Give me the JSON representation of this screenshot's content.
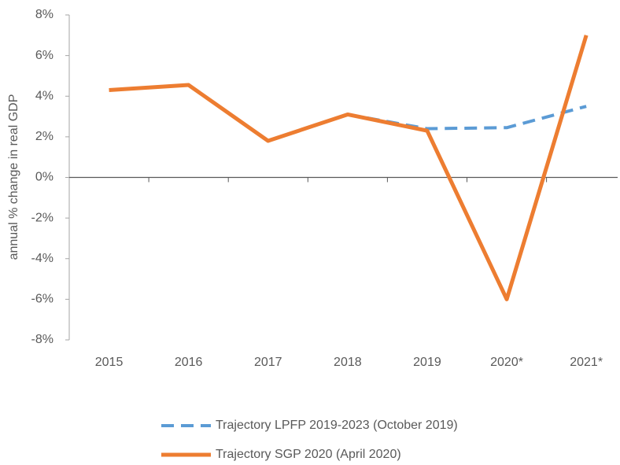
{
  "chart_data": {
    "type": "line",
    "y_axis_label": "annual % change in real GDP",
    "categories": [
      "2015",
      "2016",
      "2017",
      "2018",
      "2019",
      "2020*",
      "2021*"
    ],
    "series": [
      {
        "name": "Trajectory LPFP 2019-2023 (October 2019)",
        "color": "#5b9bd5",
        "dashed": true,
        "values": [
          null,
          null,
          null,
          3.1,
          2.4,
          2.45,
          3.5
        ]
      },
      {
        "name": "Trajectory SGP 2020 (April 2020)",
        "color": "#ed7d31",
        "dashed": false,
        "values": [
          4.3,
          4.55,
          1.8,
          3.1,
          2.3,
          -6.0,
          7.0
        ]
      }
    ],
    "ylim": [
      -8,
      8
    ],
    "yticks": [
      {
        "value": -8,
        "label": "-8%"
      },
      {
        "value": -6,
        "label": "-6%"
      },
      {
        "value": -4,
        "label": "-4%"
      },
      {
        "value": -2,
        "label": "-2%"
      },
      {
        "value": 0,
        "label": "0%"
      },
      {
        "value": 2,
        "label": "2%"
      },
      {
        "value": 4,
        "label": "4%"
      },
      {
        "value": 6,
        "label": "6%"
      },
      {
        "value": 8,
        "label": "8%"
      }
    ],
    "legend": "bottom"
  }
}
